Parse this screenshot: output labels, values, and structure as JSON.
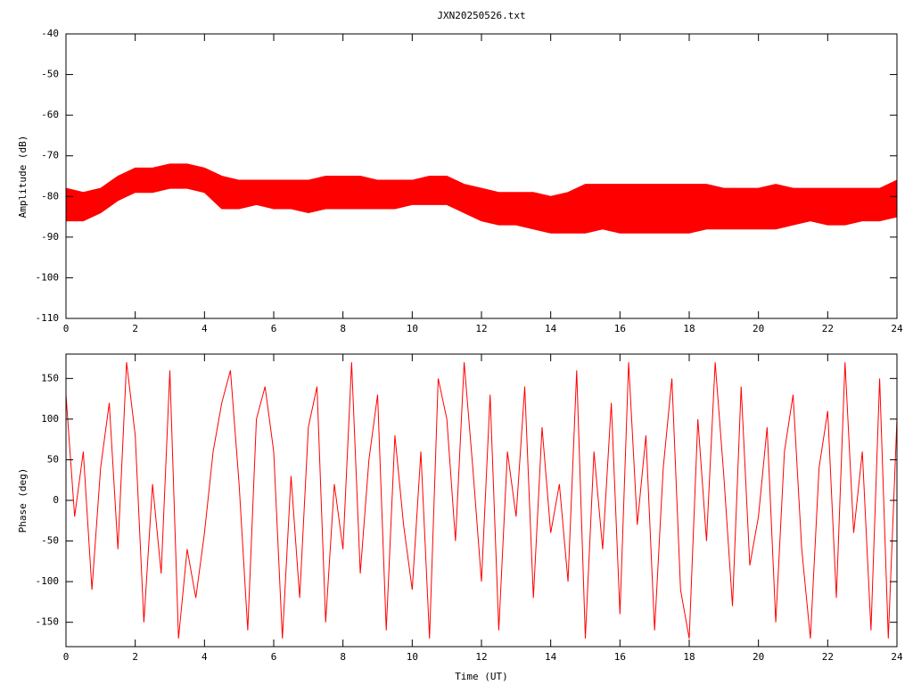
{
  "chart_data": [
    {
      "type": "band",
      "title": "JXN20250526.txt",
      "ylabel": "Amplitude (dB)",
      "color": "#ff0000",
      "x": [
        0,
        0.5,
        1,
        1.5,
        2,
        2.5,
        3,
        3.5,
        4,
        4.5,
        5,
        5.5,
        6,
        6.5,
        7,
        7.5,
        8,
        8.5,
        9,
        9.5,
        10,
        10.5,
        11,
        11.5,
        12,
        12.5,
        13,
        13.5,
        14,
        14.5,
        15,
        15.5,
        16,
        16.5,
        17,
        17.5,
        18,
        18.5,
        19,
        19.5,
        20,
        20.5,
        21,
        21.5,
        22,
        22.5,
        23,
        23.5,
        24
      ],
      "low": [
        -86,
        -86,
        -84,
        -81,
        -79,
        -79,
        -78,
        -78,
        -79,
        -83,
        -83,
        -82,
        -83,
        -83,
        -84,
        -83,
        -83,
        -83,
        -83,
        -83,
        -82,
        -82,
        -82,
        -84,
        -86,
        -87,
        -87,
        -88,
        -89,
        -89,
        -89,
        -88,
        -89,
        -89,
        -89,
        -89,
        -89,
        -88,
        -88,
        -88,
        -88,
        -88,
        -87,
        -86,
        -87,
        -87,
        -86,
        -86,
        -85
      ],
      "high": [
        -78,
        -79,
        -78,
        -75,
        -73,
        -73,
        -72,
        -72,
        -73,
        -75,
        -76,
        -76,
        -76,
        -76,
        -76,
        -75,
        -75,
        -75,
        -76,
        -76,
        -76,
        -75,
        -75,
        -77,
        -78,
        -79,
        -79,
        -79,
        -80,
        -79,
        -77,
        -77,
        -77,
        -77,
        -77,
        -77,
        -77,
        -77,
        -78,
        -78,
        -78,
        -77,
        -78,
        -78,
        -78,
        -78,
        -78,
        -78,
        -76
      ],
      "xlim": [
        0,
        24
      ],
      "xticks": [
        0,
        2,
        4,
        6,
        8,
        10,
        12,
        14,
        16,
        18,
        20,
        22,
        24
      ],
      "ylim": [
        -110,
        -40
      ],
      "yticks": [
        -40,
        -50,
        -60,
        -70,
        -80,
        -90,
        -100,
        -110
      ]
    },
    {
      "type": "line",
      "xlabel": "Time (UT)",
      "ylabel": "Phase (deg)",
      "color": "#ff0000",
      "x": [
        0,
        0.25,
        0.5,
        0.75,
        1,
        1.25,
        1.5,
        1.75,
        2,
        2.25,
        2.5,
        2.75,
        3,
        3.25,
        3.5,
        3.75,
        4,
        4.25,
        4.5,
        4.75,
        5,
        5.25,
        5.5,
        5.75,
        6,
        6.25,
        6.5,
        6.75,
        7,
        7.25,
        7.5,
        7.75,
        8,
        8.25,
        8.5,
        8.75,
        9,
        9.25,
        9.5,
        9.75,
        10,
        10.25,
        10.5,
        10.75,
        11,
        11.25,
        11.5,
        11.75,
        12,
        12.25,
        12.5,
        12.75,
        13,
        13.25,
        13.5,
        13.75,
        14,
        14.25,
        14.5,
        14.75,
        15,
        15.25,
        15.5,
        15.75,
        16,
        16.25,
        16.5,
        16.75,
        17,
        17.25,
        17.5,
        17.75,
        18,
        18.25,
        18.5,
        18.75,
        19,
        19.25,
        19.5,
        19.75,
        20,
        20.25,
        20.5,
        20.75,
        21,
        21.25,
        21.5,
        21.75,
        22,
        22.25,
        22.5,
        22.75,
        23,
        23.25,
        23.5,
        23.75,
        24
      ],
      "values": [
        130,
        -20,
        60,
        -110,
        40,
        120,
        -60,
        170,
        80,
        -150,
        20,
        -90,
        160,
        -170,
        -60,
        -120,
        -40,
        60,
        120,
        160,
        20,
        -160,
        100,
        140,
        60,
        -170,
        30,
        -120,
        90,
        140,
        -150,
        20,
        -60,
        170,
        -90,
        50,
        130,
        -160,
        80,
        -30,
        -110,
        60,
        -170,
        150,
        100,
        -50,
        170,
        40,
        -100,
        130,
        -160,
        60,
        -20,
        140,
        -120,
        90,
        -40,
        20,
        -100,
        160,
        -170,
        60,
        -60,
        120,
        -140,
        170,
        -30,
        80,
        -160,
        40,
        150,
        -110,
        -170,
        100,
        -50,
        170,
        30,
        -130,
        140,
        -80,
        -20,
        90,
        -150,
        60,
        130,
        -60,
        -170,
        40,
        110,
        -120,
        170,
        -40,
        60,
        -160,
        150,
        -170,
        100
      ],
      "xlim": [
        0,
        24
      ],
      "xticks": [
        0,
        2,
        4,
        6,
        8,
        10,
        12,
        14,
        16,
        18,
        20,
        22,
        24
      ],
      "ylim": [
        -180,
        180
      ],
      "yticks": [
        150,
        100,
        50,
        0,
        -50,
        -100,
        -150
      ]
    }
  ]
}
